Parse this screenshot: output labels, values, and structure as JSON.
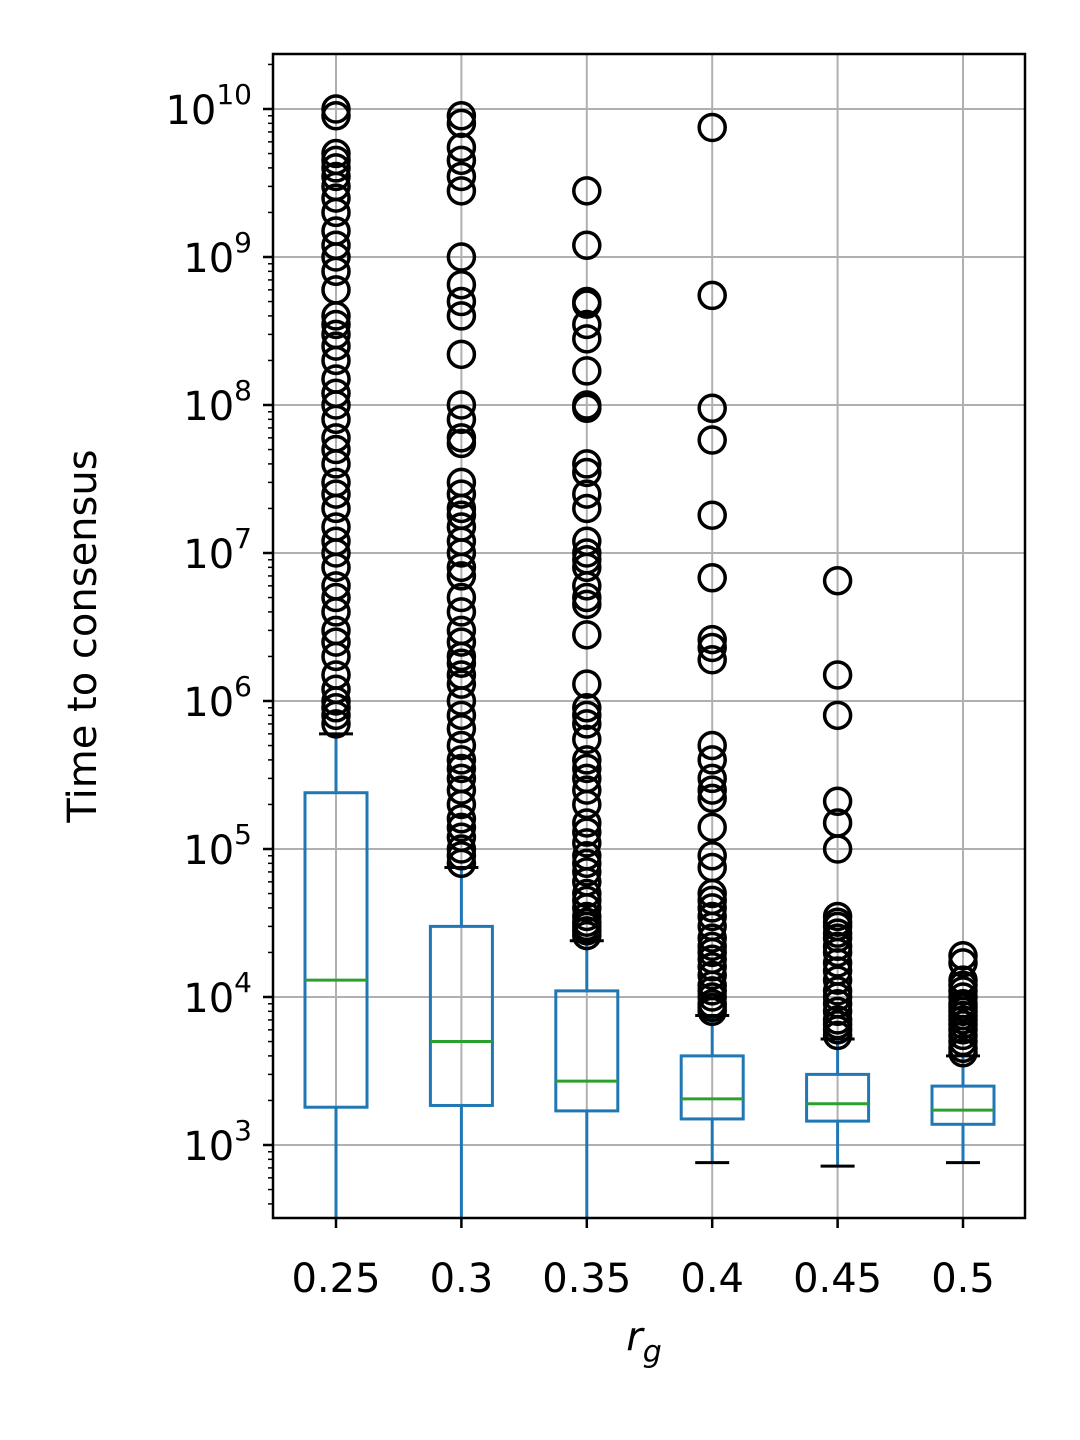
{
  "chart_data": {
    "type": "box",
    "title": "",
    "xlabel": "r",
    "xlabel_subscript": "g",
    "ylabel": "Time to consensus",
    "yscale": "log",
    "ylim": [
      330,
      22000000000.0
    ],
    "grid": true,
    "categories": [
      "0.25",
      "0.3",
      "0.35",
      "0.4",
      "0.45",
      "0.5"
    ],
    "y_tick_labels": [
      {
        "base": "10",
        "exp": "3",
        "value": 1000
      },
      {
        "base": "10",
        "exp": "4",
        "value": 10000
      },
      {
        "base": "10",
        "exp": "5",
        "value": 100000
      },
      {
        "base": "10",
        "exp": "6",
        "value": 1000000
      },
      {
        "base": "10",
        "exp": "7",
        "value": 10000000
      },
      {
        "base": "10",
        "exp": "8",
        "value": 100000000
      },
      {
        "base": "10",
        "exp": "9",
        "value": 1000000000
      },
      {
        "base": "10",
        "exp": "10",
        "value": 10000000000
      }
    ],
    "colors": {
      "box": "#1f77b4",
      "median": "#2ca02c",
      "flier": "#000000",
      "whisker_cap": "#000000",
      "grid": "#b0b0b0"
    },
    "boxes": [
      {
        "category": "0.25",
        "whisker_low": 300,
        "q1": 1800,
        "median": 13000,
        "q3": 240000,
        "whisker_high": 600000,
        "outliers": [
          10000000000.0,
          9000000000.0,
          5000000000.0,
          4500000000.0,
          4000000000.0,
          3500000000.0,
          3000000000.0,
          2500000000.0,
          2000000000.0,
          1500000000.0,
          1200000000.0,
          1000000000.0,
          800000000.0,
          600000000.0,
          400000000.0,
          350000000.0,
          300000000.0,
          250000000.0,
          200000000.0,
          150000000.0,
          120000000.0,
          100000000.0,
          80000000.0,
          60000000.0,
          50000000.0,
          40000000.0,
          30000000.0,
          25000000.0,
          20000000.0,
          15000000.0,
          12000000.0,
          10000000.0,
          8000000.0,
          6000000.0,
          5000000.0,
          4000000.0,
          3000000.0,
          2500000.0,
          2000000.0,
          1500000.0,
          1200000.0,
          1000000.0,
          900000.0,
          800000.0,
          700000.0
        ]
      },
      {
        "category": "0.3",
        "whisker_low": 300,
        "q1": 1850,
        "median": 5000,
        "q3": 30000,
        "whisker_high": 75000,
        "outliers": [
          9000000000.0,
          8000000000.0,
          5500000000.0,
          4500000000.0,
          3500000000.0,
          2800000000.0,
          1000000000.0,
          650000000.0,
          500000000.0,
          400000000.0,
          220000000.0,
          100000000.0,
          80000000.0,
          60000000.0,
          55000000.0,
          30000000.0,
          25000000.0,
          20000000.0,
          18000000.0,
          15000000.0,
          12000000.0,
          10000000.0,
          8000000.0,
          7000000.0,
          5000000.0,
          4000000.0,
          3000000.0,
          2500000.0,
          2000000.0,
          1800000.0,
          1500000.0,
          1300000.0,
          1000000.0,
          800000.0,
          650000.0,
          500000.0,
          400000.0,
          350000.0,
          300000.0,
          250000.0,
          200000.0,
          160000.0,
          140000.0,
          120000.0,
          100000.0,
          90000.0,
          80000.0
        ]
      },
      {
        "category": "0.35",
        "whisker_low": 300,
        "q1": 1700,
        "median": 2700,
        "q3": 11000,
        "whisker_high": 24000,
        "outliers": [
          2800000000.0,
          1200000000.0,
          500000000.0,
          480000000.0,
          350000000.0,
          280000000.0,
          170000000.0,
          100000000.0,
          95000000.0,
          40000000.0,
          35000000.0,
          25000000.0,
          20000000.0,
          12000000.0,
          10000000.0,
          9000000.0,
          8000000.0,
          6000000.0,
          5000000.0,
          4500000.0,
          2800000.0,
          1300000.0,
          900000.0,
          800000.0,
          700000.0,
          550000.0,
          400000.0,
          350000.0,
          300000.0,
          250000.0,
          200000.0,
          150000.0,
          130000.0,
          110000.0,
          90000.0,
          80000.0,
          70000.0,
          60000.0,
          50000.0,
          45000.0,
          40000.0,
          35000.0,
          32000.0,
          30000.0,
          28000.0,
          26000.0
        ]
      },
      {
        "category": "0.4",
        "whisker_low": 760,
        "q1": 1500,
        "median": 2050,
        "q3": 4000,
        "whisker_high": 7500,
        "outliers": [
          7500000000.0,
          550000000.0,
          95000000.0,
          58000000.0,
          18000000.0,
          6800000.0,
          2600000.0,
          2300000.0,
          1900000.0,
          500000.0,
          400000.0,
          300000.0,
          250000.0,
          220000.0,
          140000.0,
          90000.0,
          75000.0,
          50000.0,
          45000.0,
          40000.0,
          35000.0,
          30000.0,
          25000.0,
          22000.0,
          20000.0,
          18000.0,
          16000.0,
          14000.0,
          12000.0,
          11000.0,
          10000.0,
          9000.0,
          8500.0,
          8000.0
        ]
      },
      {
        "category": "0.45",
        "whisker_low": 720,
        "q1": 1450,
        "median": 1900,
        "q3": 3000,
        "whisker_high": 5200,
        "outliers": [
          6500000.0,
          1500000.0,
          800000.0,
          210000.0,
          150000.0,
          100000.0,
          35000.0,
          32000.0,
          30000.0,
          27000.0,
          25000.0,
          22000.0,
          20000.0,
          17000.0,
          15000.0,
          13000.0,
          11000.0,
          10000.0,
          9000.0,
          8000.0,
          7000.0,
          6500.0,
          6000.0,
          5500.0
        ]
      },
      {
        "category": "0.5",
        "whisker_low": 760,
        "q1": 1380,
        "median": 1720,
        "q3": 2500,
        "whisker_high": 4000,
        "outliers": [
          19000.0,
          17000.0,
          13000.0,
          12000.0,
          11000.0,
          10000.0,
          9000.0,
          8500.0,
          8000.0,
          7500.0,
          7000.0,
          6500.0,
          6000.0,
          5500.0,
          5000.0,
          4500.0,
          4200.0
        ]
      }
    ]
  }
}
